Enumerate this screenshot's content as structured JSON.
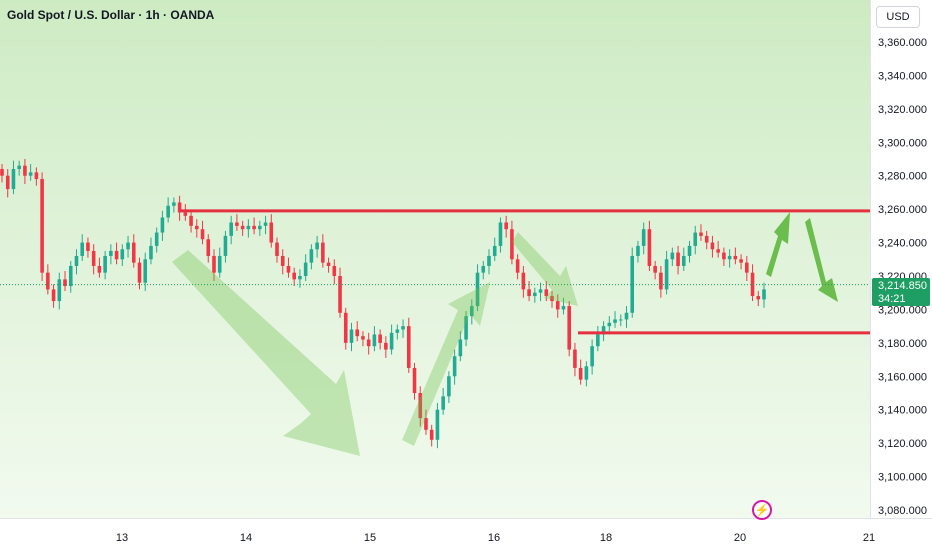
{
  "header": {
    "title": "Gold Spot / U.S. Dollar · 1h · OANDA",
    "currency_button": "USD"
  },
  "price_tag": {
    "price": "3,214.850",
    "countdown": "34:21"
  },
  "colors": {
    "up": "#22ab94",
    "down": "#f23645",
    "level_line": "#e53040",
    "arrow": "#6cc04a"
  },
  "icons": {
    "flash": "lightning-icon"
  },
  "chart_data": {
    "type": "candlestick",
    "title": "Gold Spot / U.S. Dollar · 1h · OANDA",
    "xlabel": "",
    "ylabel": "",
    "ylim": [
      3075,
      3375
    ],
    "y_ticks": [
      3080,
      3100,
      3120,
      3140,
      3160,
      3180,
      3200,
      3220,
      3240,
      3260,
      3280,
      3300,
      3320,
      3340,
      3360
    ],
    "y_tick_labels": [
      "3,080.000",
      "3,100.000",
      "3,120.000",
      "3,140.000",
      "3,160.000",
      "3,180.000",
      "3,200.000",
      "3,220.000",
      "3,240.000",
      "3,260.000",
      "3,280.000",
      "3,300.000",
      "3,320.000",
      "3,340.000",
      "3,360.000"
    ],
    "x_tick_labels": [
      "13",
      "14",
      "15",
      "16",
      "18",
      "20",
      "21"
    ],
    "last_price": 3214.85,
    "resistance_level": 3259,
    "support_level": 3186,
    "close_series": [
      3280,
      3272,
      3284,
      3286,
      3280,
      3282,
      3278,
      3222,
      3212,
      3205,
      3218,
      3214,
      3226,
      3232,
      3240,
      3235,
      3226,
      3222,
      3232,
      3235,
      3230,
      3236,
      3240,
      3228,
      3216,
      3230,
      3238,
      3246,
      3255,
      3262,
      3264,
      3258,
      3256,
      3250,
      3248,
      3242,
      3232,
      3222,
      3232,
      3244,
      3252,
      3250,
      3248,
      3250,
      3248,
      3250,
      3252,
      3240,
      3232,
      3226,
      3222,
      3218,
      3220,
      3228,
      3236,
      3240,
      3228,
      3226,
      3220,
      3198,
      3180,
      3188,
      3184,
      3182,
      3178,
      3185,
      3180,
      3176,
      3186,
      3188,
      3190,
      3165,
      3150,
      3135,
      3128,
      3122,
      3140,
      3148,
      3160,
      3172,
      3182,
      3196,
      3202,
      3222,
      3226,
      3232,
      3238,
      3252,
      3248,
      3230,
      3222,
      3212,
      3208,
      3210,
      3212,
      3208,
      3205,
      3200,
      3202,
      3176,
      3165,
      3158,
      3166,
      3178,
      3185,
      3190,
      3192,
      3194,
      3194,
      3198,
      3232,
      3238,
      3248,
      3226,
      3222,
      3212,
      3230,
      3234,
      3226,
      3232,
      3238,
      3246,
      3244,
      3240,
      3236,
      3234,
      3230,
      3232,
      3230,
      3228,
      3222,
      3208,
      3206,
      3212
    ],
    "annotations": [
      {
        "type": "horizontal_segment",
        "level": 3259,
        "note": "resistance"
      },
      {
        "type": "horizontal_segment",
        "level": 3186,
        "note": "support"
      },
      {
        "type": "arrow",
        "direction": "down"
      },
      {
        "type": "arrow",
        "direction": "up"
      },
      {
        "type": "arrow",
        "direction": "down"
      },
      {
        "type": "arrow",
        "direction": "up"
      },
      {
        "type": "arrow",
        "direction": "down"
      }
    ]
  }
}
